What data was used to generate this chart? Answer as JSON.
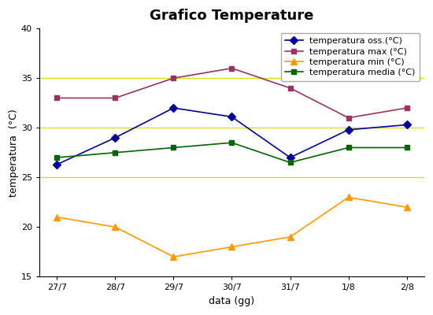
{
  "title": "Grafico Temperature",
  "xlabel": "data (gg)",
  "ylabel": "temperatura  (°C)",
  "x_labels": [
    "27/7",
    "28/7",
    "29/7",
    "30/7",
    "31/7",
    "1/8",
    "2/8"
  ],
  "series": [
    {
      "label": "temperatura oss.(°C)",
      "values": [
        26.3,
        29.0,
        32.0,
        31.1,
        27.0,
        29.8,
        30.3
      ],
      "color": "#000099",
      "marker": "D",
      "markersize": 5
    },
    {
      "label": "temperatura max (°C)",
      "values": [
        33.0,
        33.0,
        35.0,
        36.0,
        34.0,
        31.0,
        32.0
      ],
      "color": "#993366",
      "marker": "s",
      "markersize": 5
    },
    {
      "label": "temperatura min (°C)",
      "values": [
        21.0,
        20.0,
        17.0,
        18.0,
        19.0,
        23.0,
        22.0
      ],
      "color": "#ff9900",
      "marker": "^",
      "markersize": 6
    },
    {
      "label": "temperatura media (°C)",
      "values": [
        27.0,
        27.5,
        28.0,
        28.5,
        26.5,
        28.0,
        28.0
      ],
      "color": "#006600",
      "marker": "s",
      "markersize": 5
    }
  ],
  "ylim": [
    15,
    40
  ],
  "yticks": [
    15,
    20,
    25,
    30,
    35,
    40
  ],
  "grid_color": "#dddd00",
  "grid_yticks": [
    25,
    30,
    35
  ],
  "background_color": "#ffffff",
  "title_fontsize": 13,
  "axis_fontsize": 8,
  "label_fontsize": 9,
  "legend_fontsize": 8
}
